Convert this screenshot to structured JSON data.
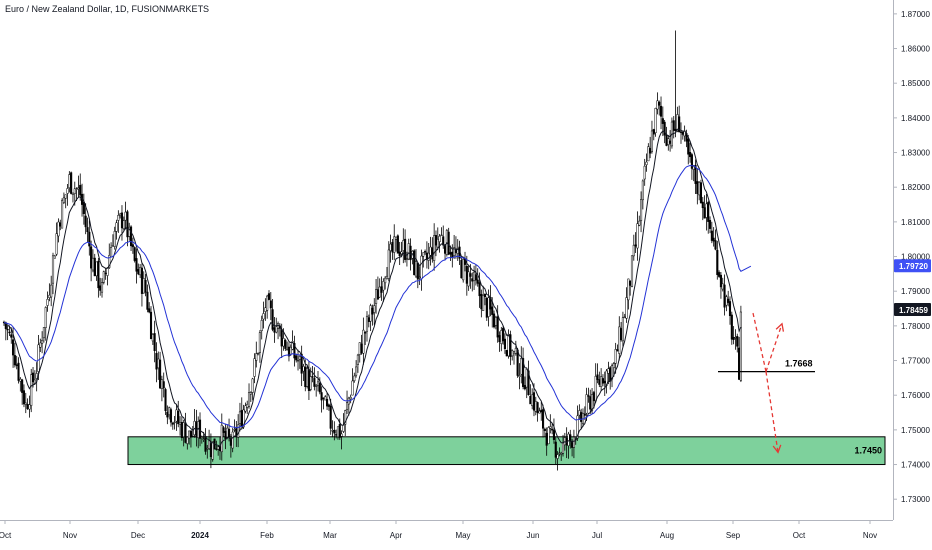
{
  "header": {
    "title": "Euro / New Zealand Dollar, 1D, FUSIONMARKETS"
  },
  "chart_data": {
    "type": "candlestick",
    "symbol": "Euro / New Zealand Dollar",
    "interval": "1D",
    "source": "FUSIONMARKETS",
    "ylim": [
      1.724,
      1.874
    ],
    "y_ticks": [
      "1.87000",
      "1.86000",
      "1.85000",
      "1.84000",
      "1.83000",
      "1.82000",
      "1.81000",
      "1.80000",
      "1.79000",
      "1.78000",
      "1.77000",
      "1.76000",
      "1.75000",
      "1.74000",
      "1.73000"
    ],
    "x_ticks": [
      {
        "label": "Oct",
        "bold": false
      },
      {
        "label": "Nov",
        "bold": false
      },
      {
        "label": "Dec",
        "bold": false
      },
      {
        "label": "2024",
        "bold": true
      },
      {
        "label": "Feb",
        "bold": false
      },
      {
        "label": "Mar",
        "bold": false
      },
      {
        "label": "Apr",
        "bold": false
      },
      {
        "label": "May",
        "bold": false
      },
      {
        "label": "Jun",
        "bold": false
      },
      {
        "label": "Jul",
        "bold": false
      },
      {
        "label": "Aug",
        "bold": false
      },
      {
        "label": "Sep",
        "bold": false
      },
      {
        "label": "Oct",
        "bold": false
      },
      {
        "label": "Nov",
        "bold": false
      }
    ],
    "price_badges": [
      {
        "value": 1.7972,
        "label": "1.79720",
        "color": "#3f51f5"
      },
      {
        "value": 1.78459,
        "label": "1.78459",
        "color": "#131722"
      }
    ],
    "support_zone": {
      "low": 1.74,
      "high": 1.748,
      "label": "1.7450",
      "color": "#7ed19c"
    },
    "level_line": {
      "value": 1.7668,
      "label": "1.7668"
    },
    "arrows": [
      {
        "direction": "up",
        "target": 1.7806,
        "color": "#e53935"
      },
      {
        "direction": "down",
        "target": 1.7435,
        "color": "#e53935"
      }
    ],
    "anchors": [
      [
        0,
        1.781
      ],
      [
        5,
        1.774
      ],
      [
        12,
        1.757
      ],
      [
        18,
        1.768
      ],
      [
        24,
        1.788
      ],
      [
        30,
        1.81
      ],
      [
        36,
        1.822
      ],
      [
        42,
        1.818
      ],
      [
        48,
        1.8
      ],
      [
        54,
        1.79
      ],
      [
        60,
        1.806
      ],
      [
        66,
        1.812
      ],
      [
        72,
        1.798
      ],
      [
        78,
        1.79
      ],
      [
        84,
        1.77
      ],
      [
        90,
        1.757
      ],
      [
        96,
        1.752
      ],
      [
        102,
        1.748
      ],
      [
        108,
        1.75
      ],
      [
        114,
        1.745
      ],
      [
        120,
        1.748
      ],
      [
        126,
        1.746
      ],
      [
        132,
        1.756
      ],
      [
        138,
        1.768
      ],
      [
        144,
        1.786
      ],
      [
        150,
        1.78
      ],
      [
        156,
        1.774
      ],
      [
        162,
        1.77
      ],
      [
        168,
        1.764
      ],
      [
        174,
        1.76
      ],
      [
        180,
        1.752
      ],
      [
        186,
        1.749
      ],
      [
        192,
        1.764
      ],
      [
        198,
        1.777
      ],
      [
        204,
        1.786
      ],
      [
        210,
        1.797
      ],
      [
        216,
        1.803
      ],
      [
        222,
        1.802
      ],
      [
        228,
        1.795
      ],
      [
        234,
        1.8
      ],
      [
        240,
        1.806
      ],
      [
        246,
        1.803
      ],
      [
        252,
        1.797
      ],
      [
        258,
        1.793
      ],
      [
        264,
        1.787
      ],
      [
        270,
        1.782
      ],
      [
        276,
        1.776
      ],
      [
        282,
        1.77
      ],
      [
        288,
        1.764
      ],
      [
        294,
        1.755
      ],
      [
        300,
        1.748
      ],
      [
        306,
        1.744
      ],
      [
        312,
        1.747
      ],
      [
        318,
        1.753
      ],
      [
        324,
        1.76
      ],
      [
        330,
        1.766
      ],
      [
        336,
        1.768
      ],
      [
        342,
        1.784
      ],
      [
        348,
        1.803
      ],
      [
        354,
        1.827
      ],
      [
        360,
        1.843
      ],
      [
        366,
        1.834
      ],
      [
        372,
        1.839
      ],
      [
        378,
        1.826
      ],
      [
        384,
        1.818
      ],
      [
        390,
        1.806
      ],
      [
        396,
        1.791
      ],
      [
        402,
        1.776
      ],
      [
        405,
        1.768
      ],
      [
        406,
        1.784
      ]
    ],
    "ema_fast_period": 9,
    "ema_slow_period": 30,
    "ema_fast_color": "#131722",
    "ema_slow_color": "#2433d6"
  }
}
